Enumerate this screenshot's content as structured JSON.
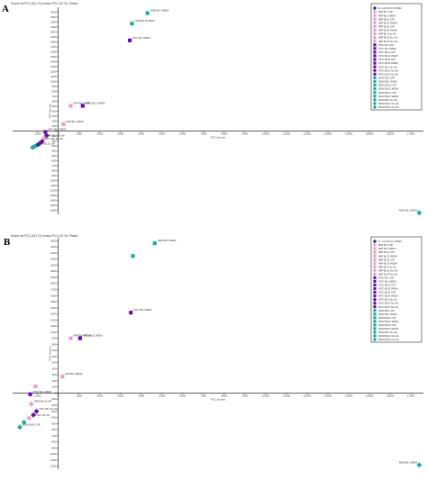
{
  "panels": [
    {
      "letter": "A",
      "title": "Scores for PC1 (26.2 %) versus PC2 (4.9 %), Pareto",
      "chart_data": {
        "type": "scatter",
        "xlabel": "PC1 Scores",
        "ylabel": "PC2 Scores",
        "xlim": [
          -2200,
          17600
        ],
        "ylim": [
          -1680,
          2500
        ],
        "xticks": [
          -1000,
          0,
          1000,
          2000,
          3000,
          4000,
          5000,
          6000,
          7000,
          8000,
          9000,
          10000,
          11000,
          12000,
          13000,
          14000,
          15000,
          16000,
          17000
        ],
        "xtick_labels": [
          "-1000",
          "0",
          "1000",
          "2000",
          "3000",
          "4000",
          "5000",
          "6000",
          "7000",
          "8000",
          "9000",
          "10000",
          "11000",
          "12000",
          "13000",
          "14000",
          "15000",
          "16000",
          "17000"
        ],
        "yticks": [
          -1600,
          -1500,
          -1400,
          -1300,
          -1200,
          -1100,
          -1000,
          -900,
          -800,
          -700,
          -600,
          -500,
          -400,
          -300,
          -200,
          -100,
          0,
          100,
          200,
          300,
          400,
          500,
          600,
          700,
          800,
          900,
          1000,
          1100,
          1200,
          1300,
          1400,
          1500,
          1600,
          1700,
          1800,
          1900,
          2000,
          2100,
          2200,
          2300,
          2400
        ],
        "ytick_labels": [
          "-1600",
          "-1500",
          "-1400",
          "-1300",
          "-1200",
          "-1100",
          "-1000",
          "-900",
          "-800",
          "-700",
          "-600",
          "-500",
          "-400",
          "-300",
          "-200",
          "-100",
          "0",
          "100",
          "200",
          "300",
          "400",
          "500",
          "600",
          "700",
          "800",
          "900",
          "1000",
          "1100",
          "1200",
          "1300",
          "1400",
          "1500",
          "1600",
          "1700",
          "1800",
          "1900",
          "2000",
          "2100",
          "2200",
          "2300",
          "2400"
        ],
        "points": [
          {
            "x": 4300,
            "y": 2380,
            "color": "#1aaba6",
            "marker": "square",
            "label": "NDM BLI WEW"
          },
          {
            "x": 3550,
            "y": 2170,
            "color": "#1aaba6",
            "marker": "square",
            "label": "NDM BLI2 WEW"
          },
          {
            "x": 3450,
            "y": 1830,
            "color": "#6a0dad",
            "marker": "square",
            "label": "KPC BLI WEW"
          },
          {
            "x": 600,
            "y": 510,
            "color": "#e89fd0",
            "marker": "square",
            "label": "IMP BLI WEW"
          },
          {
            "x": 1180,
            "y": 510,
            "color": "#6a0dad",
            "marker": "square",
            "label": "KPC BLI2 WEW"
          },
          {
            "x": 250,
            "y": 140,
            "color": "#e89fd0",
            "marker": "square",
            "label": "IMP BLI WEW"
          },
          {
            "x": -620,
            "y": -20,
            "color": "#6a0dad",
            "marker": "square",
            "label": "KPC BLI WEW"
          },
          {
            "x": -560,
            "y": -90,
            "color": "#6a0dad",
            "marker": "diamond",
            "label": ""
          },
          {
            "x": -680,
            "y": -140,
            "color": "#e89fd0",
            "marker": "diamond",
            "label": "IMP BLI No Ab"
          },
          {
            "x": -780,
            "y": -210,
            "color": "#6a0dad",
            "marker": "diamond",
            "label": "KPC BLI No Ab"
          },
          {
            "x": -900,
            "y": -250,
            "color": "#6a0dad",
            "marker": "diamond",
            "label": ""
          },
          {
            "x": -1000,
            "y": -280,
            "color": "#1a3d8f",
            "marker": "circle",
            "label": ""
          },
          {
            "x": -1130,
            "y": -310,
            "color": "#1aaba6",
            "marker": "diamond",
            "label": "NDM BLI2 CIP"
          },
          {
            "x": -1240,
            "y": -330,
            "color": "#1aaba6",
            "marker": "diamond",
            "label": ""
          },
          {
            "x": 17400,
            "y": -1650,
            "color": "#1aaba6",
            "marker": "diamond",
            "label": "NDM BLI WEW"
          }
        ]
      }
    },
    {
      "letter": "B",
      "title": "Scores for PC1 (26.2 %) versus PC2 (4.9 %), Pareto",
      "chart_data": {
        "type": "scatter",
        "xlabel": "PC1 Scores",
        "ylabel": "PC2 Scores",
        "xlim": [
          -2200,
          17600
        ],
        "ylim": [
          -1250,
          2550
        ],
        "xticks": [
          -1000,
          0,
          1000,
          2000,
          3000,
          4000,
          5000,
          6000,
          7000,
          8000,
          9000,
          10000,
          11000,
          12000,
          13000,
          14000,
          15000,
          16000,
          17000
        ],
        "xtick_labels": [
          "-1000",
          "0",
          "1000",
          "2000",
          "3000",
          "4000",
          "5000",
          "6000",
          "7000",
          "8000",
          "9000",
          "10000",
          "11000",
          "12000",
          "13000",
          "14000",
          "15000",
          "16000",
          "17000"
        ],
        "yticks": [
          -1200,
          -1100,
          -1000,
          -900,
          -800,
          -700,
          -600,
          -500,
          -400,
          -300,
          -200,
          -100,
          0,
          100,
          200,
          300,
          400,
          500,
          600,
          700,
          800,
          900,
          1000,
          1100,
          1200,
          1300,
          1400,
          1500,
          1600,
          1700,
          1800,
          1900,
          2000,
          2100,
          2200,
          2300,
          2400,
          2500
        ],
        "ytick_labels": [
          "-1200",
          "-1100",
          "-1000",
          "-900",
          "-800",
          "-700",
          "-600",
          "-500",
          "-400",
          "-300",
          "-200",
          "-100",
          "0",
          "100",
          "200",
          "300",
          "400",
          "500",
          "600",
          "700",
          "800",
          "900",
          "1000",
          "1100",
          "1200",
          "1300",
          "1400",
          "1500",
          "1600",
          "1700",
          "1800",
          "1900",
          "2000",
          "2100",
          "2200",
          "2300",
          "2400",
          "2500"
        ],
        "points": [
          {
            "x": 4650,
            "y": 2460,
            "color": "#1aaba6",
            "marker": "square",
            "label": "NDM BLI WEW"
          },
          {
            "x": 3600,
            "y": 2250,
            "color": "#1aaba6",
            "marker": "square",
            "label": ""
          },
          {
            "x": 3500,
            "y": 1320,
            "color": "#6a0dad",
            "marker": "square",
            "label": "KPC BLI WEW"
          },
          {
            "x": 600,
            "y": 900,
            "color": "#e89fd0",
            "marker": "square",
            "label": "IMP BLI WEW"
          },
          {
            "x": 1050,
            "y": 900,
            "color": "#6a0dad",
            "marker": "square",
            "label": "KPC BLI2 WEW"
          },
          {
            "x": 200,
            "y": 270,
            "color": "#e89fd0",
            "marker": "square",
            "label": "IMP BLI WEW"
          },
          {
            "x": -1100,
            "y": 110,
            "color": "#e89fd0",
            "marker": "square",
            "label": ""
          },
          {
            "x": -1350,
            "y": -20,
            "color": "#6a0dad",
            "marker": "square",
            "label": "KPC BLI WEW"
          },
          {
            "x": -1300,
            "y": -180,
            "color": "#e89fd0",
            "marker": "diamond",
            "label": "NDM BLI3 CIP"
          },
          {
            "x": -1050,
            "y": -300,
            "color": "#6a0dad",
            "marker": "diamond",
            "label": "KPC BLI No Ab"
          },
          {
            "x": -1200,
            "y": -360,
            "color": "#6a0dad",
            "marker": "diamond",
            "label": ""
          },
          {
            "x": -1400,
            "y": -410,
            "color": "#e89fd0",
            "marker": "diamond",
            "label": "IMP BLI No Ab"
          },
          {
            "x": -1650,
            "y": -480,
            "color": "#1aaba6",
            "marker": "diamond",
            "label": ""
          },
          {
            "x": -1850,
            "y": -560,
            "color": "#1aaba6",
            "marker": "diamond",
            "label": "NDM BLI2 CIP"
          },
          {
            "x": 17400,
            "y": -1180,
            "color": "#1aaba6",
            "marker": "diamond",
            "label": "NDM BLI WEW"
          }
        ]
      }
    }
  ],
  "legend_entries": [
    {
      "text": "E. coli ATCC 25922",
      "color": "#1a3d8f",
      "marker": "circle"
    },
    {
      "text": "IMP BLI CIP",
      "color": "#e89fd0",
      "marker": "square"
    },
    {
      "text": "IMP BLI WEW",
      "color": "#e89fd0",
      "marker": "square"
    },
    {
      "text": "IMP BLI2 CIP",
      "color": "#e89fd0",
      "marker": "square"
    },
    {
      "text": "IMP BLI2 WEW",
      "color": "#e89fd0",
      "marker": "square"
    },
    {
      "text": "IMP BLI3 CIP",
      "color": "#e89fd0",
      "marker": "square"
    },
    {
      "text": "IMP BLI3 WEW",
      "color": "#e89fd0",
      "marker": "square"
    },
    {
      "text": "IMP BLI No Ab",
      "color": "#e89fd0",
      "marker": "diamond"
    },
    {
      "text": "IMP BLI2 No Ab",
      "color": "#e89fd0",
      "marker": "diamond"
    },
    {
      "text": "IMP BLI3 No Ab",
      "color": "#e89fd0",
      "marker": "diamond"
    },
    {
      "text": "KPC BLI CIP",
      "color": "#6a0dad",
      "marker": "square"
    },
    {
      "text": "KPC BLI WEW",
      "color": "#6a0dad",
      "marker": "square"
    },
    {
      "text": "KPC BLI2 CIP",
      "color": "#6a0dad",
      "marker": "square"
    },
    {
      "text": "KPC BLI2 WEW",
      "color": "#6a0dad",
      "marker": "square"
    },
    {
      "text": "KPC BLI3 CIP",
      "color": "#6a0dad",
      "marker": "square"
    },
    {
      "text": "KPC BLI3 WEW",
      "color": "#6a0dad",
      "marker": "square"
    },
    {
      "text": "KPC BLI No Ab",
      "color": "#6a0dad",
      "marker": "diamond"
    },
    {
      "text": "KPC BLI2 No Ab",
      "color": "#6a0dad",
      "marker": "diamond"
    },
    {
      "text": "KPC BLI3 No Ab",
      "color": "#6a0dad",
      "marker": "diamond"
    },
    {
      "text": "NDM BLI CIP",
      "color": "#1aaba6",
      "marker": "square"
    },
    {
      "text": "NDM BLI WEW",
      "color": "#1aaba6",
      "marker": "square"
    },
    {
      "text": "NDM BLI2 CIP",
      "color": "#1aaba6",
      "marker": "square"
    },
    {
      "text": "NDM BLI2 WEW",
      "color": "#1aaba6",
      "marker": "square"
    },
    {
      "text": "NDM BLI3 CIP",
      "color": "#1aaba6",
      "marker": "square"
    },
    {
      "text": "NDM BLI3 WEW",
      "color": "#1aaba6",
      "marker": "square"
    },
    {
      "text": "NDM BLI No Ab",
      "color": "#1aaba6",
      "marker": "diamond"
    },
    {
      "text": "NDM BLI2 No Ab",
      "color": "#1aaba6",
      "marker": "diamond"
    },
    {
      "text": "NDM BLI3 No Ab",
      "color": "#1aaba6",
      "marker": "diamond"
    }
  ]
}
